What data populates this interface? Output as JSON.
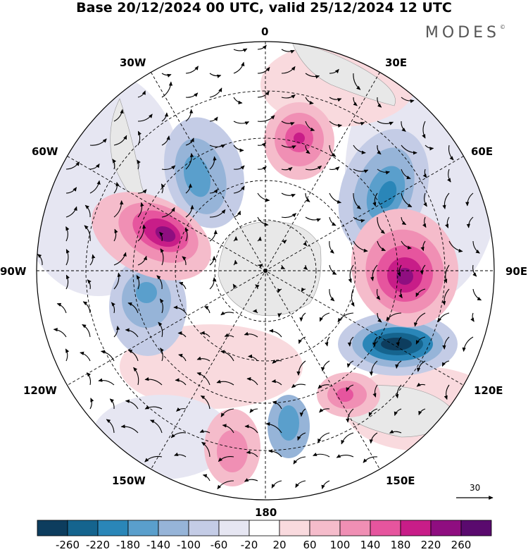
{
  "title": "Base 20/12/2024 00 UTC, valid 25/12/2024 12 UTC",
  "brand": "MODES",
  "brand_mark": "©",
  "longitude_labels": {
    "n0": "0",
    "n30e": "30E",
    "n60e": "60E",
    "n90e": "90E",
    "n120e": "120E",
    "n150e": "150E",
    "n180": "180",
    "n150w": "150W",
    "n120w": "120W",
    "n90w": "90W",
    "n60w": "60W",
    "n30w": "30W"
  },
  "vector_scale": {
    "label": "30",
    "value": 30
  },
  "colorbar": {
    "ticks": [
      "-260",
      "-220",
      "-180",
      "-140",
      "-100",
      "-60",
      "-20",
      "20",
      "60",
      "100",
      "140",
      "180",
      "220",
      "260"
    ],
    "colors": [
      "#0d3d5e",
      "#15648e",
      "#2a86b8",
      "#5a9fcc",
      "#96b4d8",
      "#c4cce6",
      "#e6e6f2",
      "#ffffff",
      "#f9dade",
      "#f5bccb",
      "#f08fb4",
      "#e6559e",
      "#c81d88",
      "#8f0e80",
      "#5a0a6e"
    ]
  },
  "map_colors": {
    "land": "#e8e8e8",
    "graticule": "#000000"
  }
}
